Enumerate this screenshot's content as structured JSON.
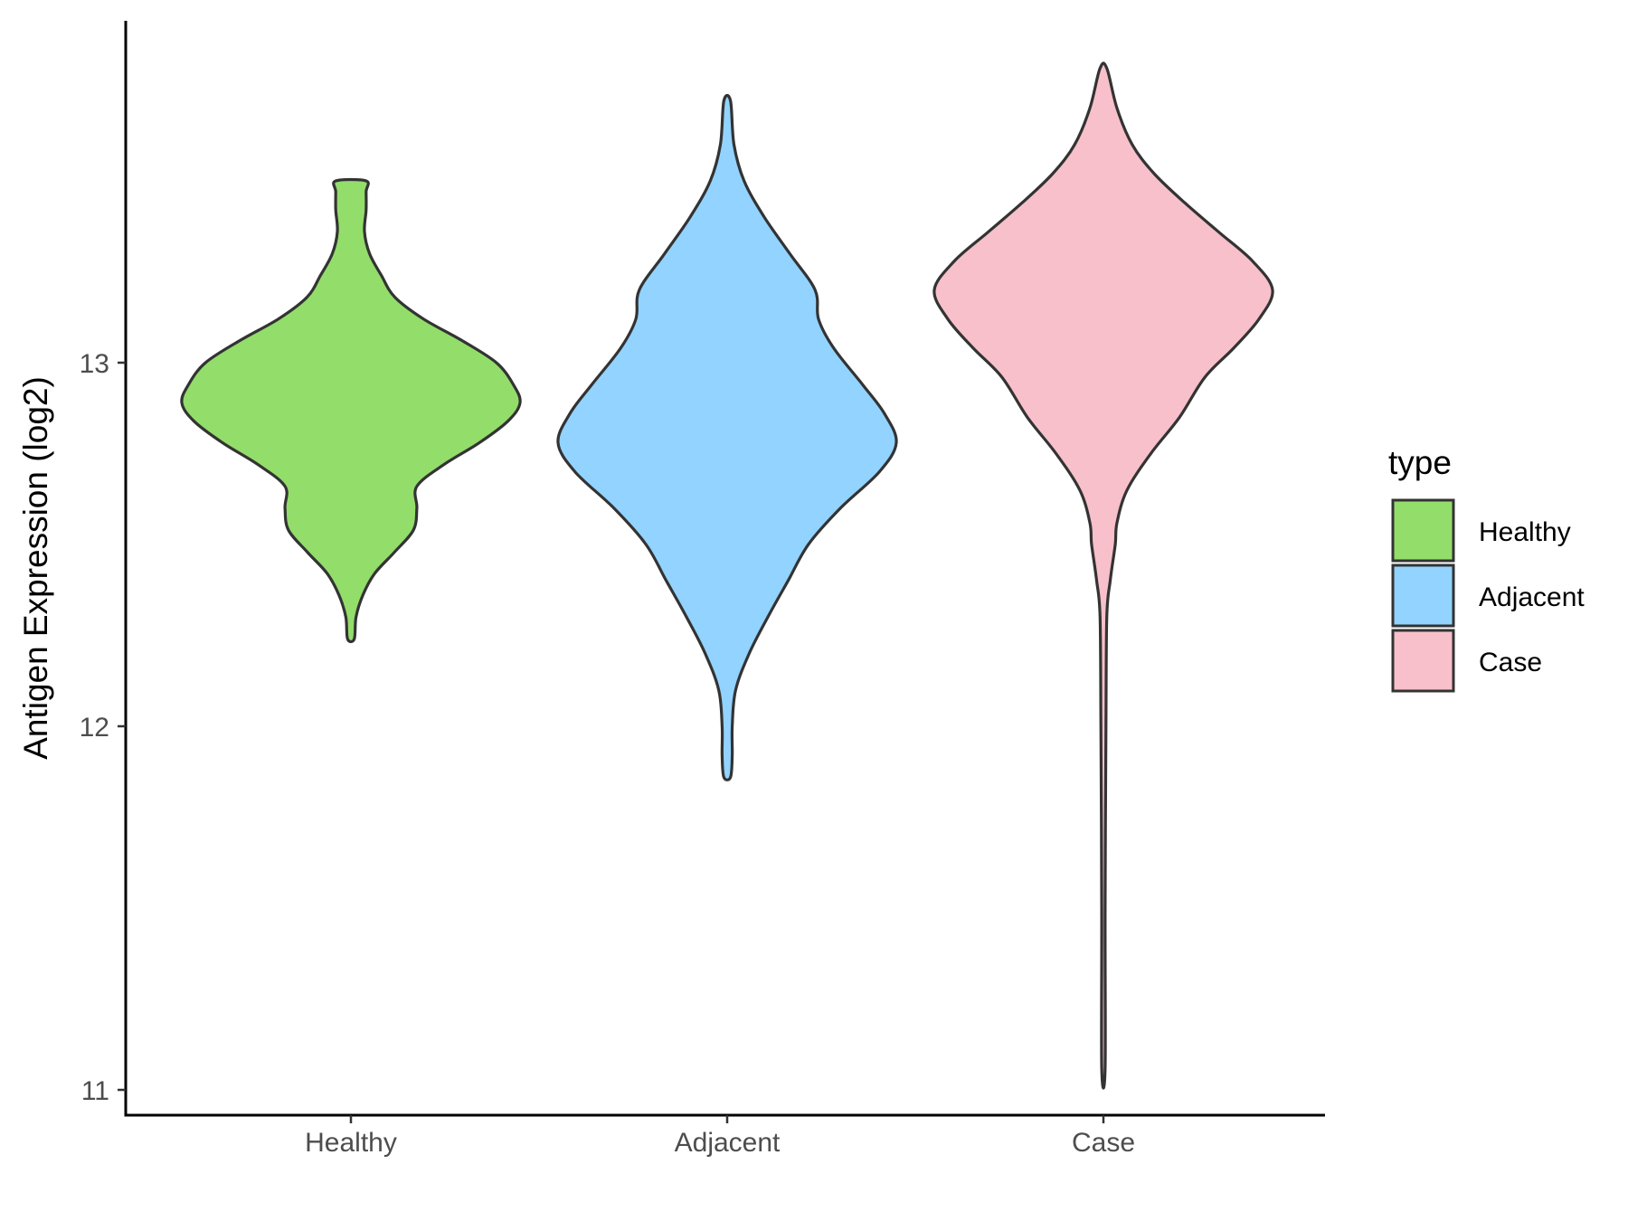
{
  "chart_data": {
    "type": "violin",
    "ylabel": "Antigen Expression (log2)",
    "xlabel": "",
    "categories": [
      "Healthy",
      "Adjacent",
      "Case"
    ],
    "y_ticks": [
      11,
      12,
      13
    ],
    "ylim": [
      10.92,
      13.95
    ],
    "grid": false,
    "legend": {
      "title": "type",
      "position": "right",
      "entries": [
        "Healthy",
        "Adjacent",
        "Case"
      ]
    },
    "colors": {
      "Healthy": "#93DD6B",
      "Adjacent": "#92D3FF",
      "Case": "#F7C0CB",
      "outline": "#333333"
    },
    "series": [
      {
        "name": "Healthy",
        "ymin": 12.24,
        "ymax": 13.5,
        "profile": [
          [
            12.24,
            0.02
          ],
          [
            12.3,
            0.03
          ],
          [
            12.36,
            0.07
          ],
          [
            12.42,
            0.14
          ],
          [
            12.48,
            0.26
          ],
          [
            12.54,
            0.37
          ],
          [
            12.6,
            0.39
          ],
          [
            12.66,
            0.39
          ],
          [
            12.72,
            0.55
          ],
          [
            12.78,
            0.76
          ],
          [
            12.84,
            0.93
          ],
          [
            12.89,
            1.0
          ],
          [
            12.94,
            0.96
          ],
          [
            13.0,
            0.86
          ],
          [
            13.06,
            0.66
          ],
          [
            13.12,
            0.43
          ],
          [
            13.18,
            0.26
          ],
          [
            13.24,
            0.18
          ],
          [
            13.3,
            0.11
          ],
          [
            13.36,
            0.08
          ],
          [
            13.42,
            0.09
          ],
          [
            13.47,
            0.09
          ],
          [
            13.5,
            0.09
          ]
        ]
      },
      {
        "name": "Adjacent",
        "ymin": 11.86,
        "ymax": 13.72,
        "profile": [
          [
            11.86,
            0.02
          ],
          [
            11.92,
            0.03
          ],
          [
            12.0,
            0.03
          ],
          [
            12.1,
            0.05
          ],
          [
            12.2,
            0.13
          ],
          [
            12.3,
            0.24
          ],
          [
            12.4,
            0.36
          ],
          [
            12.5,
            0.48
          ],
          [
            12.6,
            0.67
          ],
          [
            12.7,
            0.9
          ],
          [
            12.78,
            1.0
          ],
          [
            12.86,
            0.93
          ],
          [
            12.94,
            0.8
          ],
          [
            13.04,
            0.63
          ],
          [
            13.12,
            0.54
          ],
          [
            13.2,
            0.52
          ],
          [
            13.3,
            0.37
          ],
          [
            13.4,
            0.22
          ],
          [
            13.5,
            0.1
          ],
          [
            13.6,
            0.04
          ],
          [
            13.72,
            0.02
          ]
        ]
      },
      {
        "name": "Case",
        "ymin": 11.06,
        "ymax": 13.81,
        "profile": [
          [
            11.06,
            0.01
          ],
          [
            11.5,
            0.01
          ],
          [
            12.0,
            0.015
          ],
          [
            12.3,
            0.02
          ],
          [
            12.4,
            0.04
          ],
          [
            12.5,
            0.07
          ],
          [
            12.56,
            0.08
          ],
          [
            12.65,
            0.14
          ],
          [
            12.75,
            0.28
          ],
          [
            12.85,
            0.45
          ],
          [
            12.96,
            0.6
          ],
          [
            13.04,
            0.77
          ],
          [
            13.12,
            0.92
          ],
          [
            13.2,
            1.0
          ],
          [
            13.28,
            0.88
          ],
          [
            13.36,
            0.68
          ],
          [
            13.44,
            0.48
          ],
          [
            13.52,
            0.3
          ],
          [
            13.6,
            0.17
          ],
          [
            13.7,
            0.08
          ],
          [
            13.81,
            0.02
          ]
        ]
      }
    ]
  }
}
